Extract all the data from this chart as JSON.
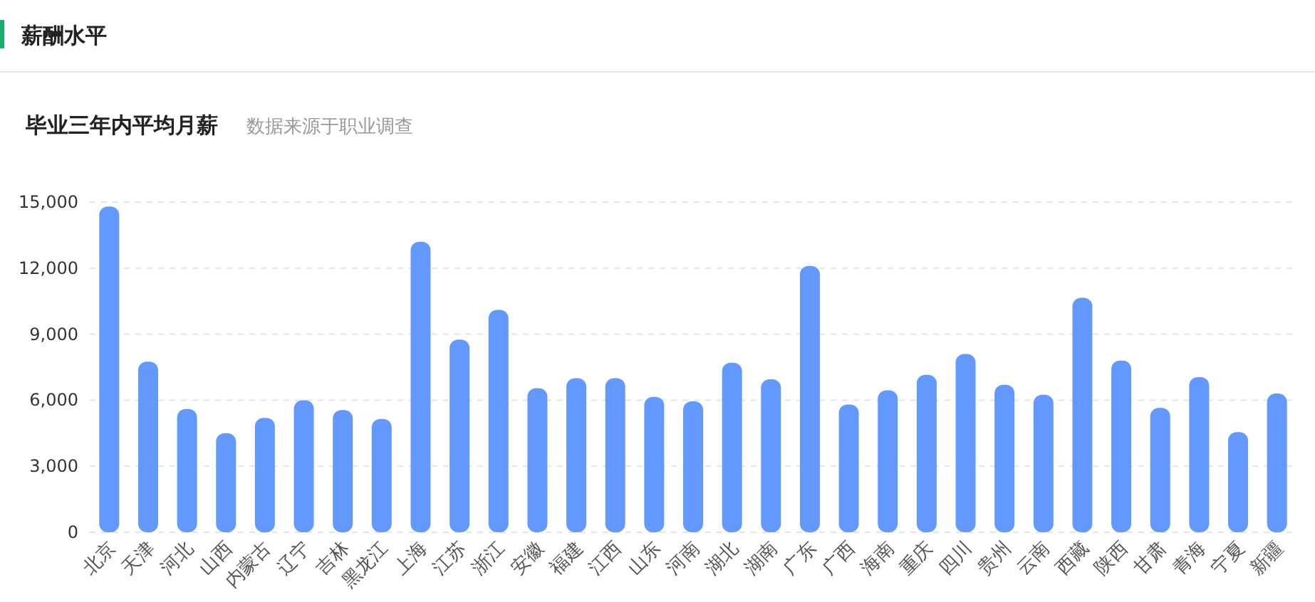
{
  "chart_data": {
    "type": "bar",
    "title": "薪酬水平",
    "subtitle": "毕业三年内平均月薪",
    "annotations": [
      "数据来源于职业调查"
    ],
    "categories": [
      "北京",
      "天津",
      "河北",
      "山西",
      "内蒙古",
      "辽宁",
      "吉林",
      "黑龙江",
      "上海",
      "江苏",
      "浙江",
      "安徽",
      "福建",
      "江西",
      "山东",
      "河南",
      "湖北",
      "湖南",
      "广东",
      "广西",
      "海南",
      "重庆",
      "四川",
      "贵州",
      "云南",
      "西藏",
      "陕西",
      "甘肃",
      "青海",
      "宁夏",
      "新疆"
    ],
    "series": [
      {
        "color": "#6399ff",
        "values": [
          14800,
          7750,
          5600,
          4500,
          5200,
          6000,
          5550,
          5150,
          13200,
          8750,
          10100,
          6550,
          7000,
          7000,
          6150,
          5950,
          7700,
          6950,
          12100,
          5800,
          6450,
          7150,
          8100,
          6700,
          6250,
          10650,
          7800,
          5650,
          7050,
          4550,
          6300
        ]
      }
    ],
    "ylim": [
      0,
      15000
    ],
    "yticks": [
      {
        "value": 0,
        "label": "0"
      },
      {
        "value": 3000,
        "label": "3,000"
      },
      {
        "value": 6000,
        "label": "6,000"
      },
      {
        "value": 9000,
        "label": "9,000"
      },
      {
        "value": 12000,
        "label": "12,000"
      },
      {
        "value": 15000,
        "label": "15,000"
      }
    ],
    "grid": "y"
  }
}
